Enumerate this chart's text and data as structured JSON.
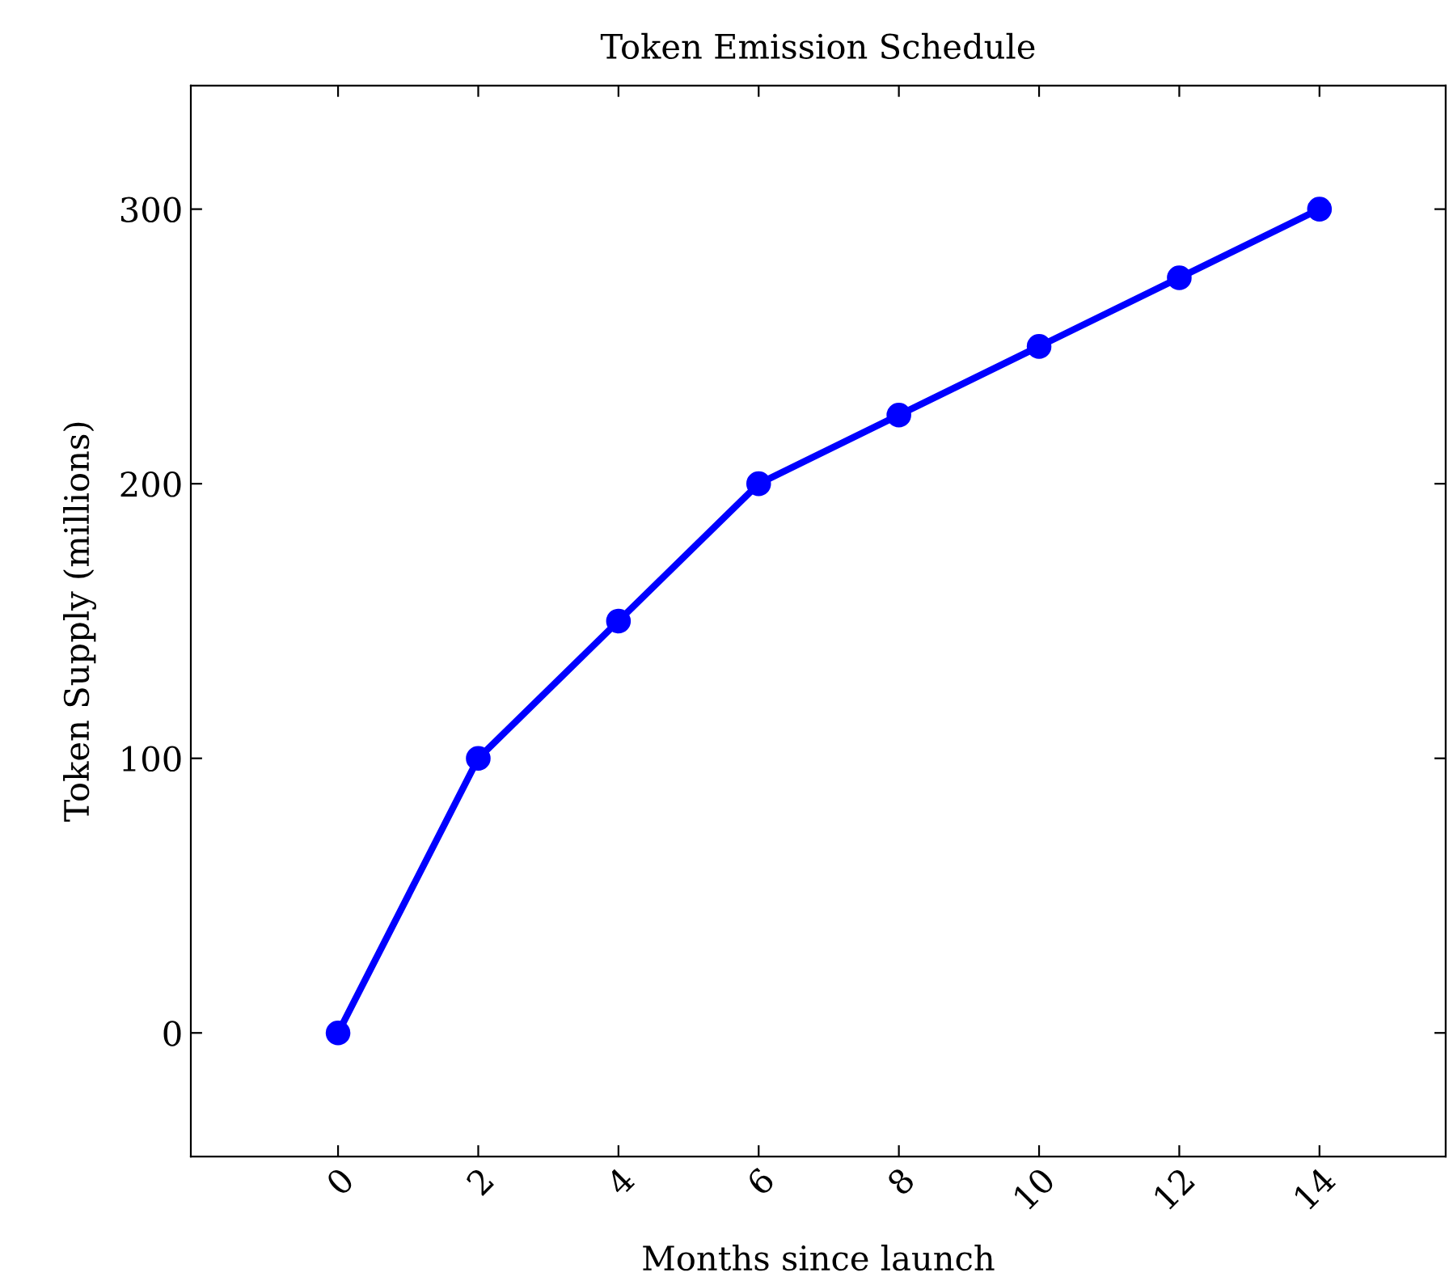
{
  "chart_data": {
    "type": "line",
    "title": "Token Emission Schedule",
    "xlabel": "Months since launch",
    "ylabel": "Token Supply (millions)",
    "series": [
      {
        "color": "#0000ff",
        "x": [
          0,
          2,
          4,
          6,
          8,
          10,
          12,
          14
        ],
        "values": [
          0,
          100,
          150,
          200,
          225,
          250,
          275,
          300
        ]
      }
    ],
    "xlim": [
      -2.1,
      15.8
    ],
    "xticks": [
      0,
      2,
      4,
      6,
      8,
      10,
      12,
      14
    ],
    "ylim": [
      -45,
      345
    ],
    "yticks": [
      0,
      100,
      200,
      300
    ],
    "grid": false,
    "legend": false,
    "marker": "circle",
    "line_style": "solid"
  }
}
